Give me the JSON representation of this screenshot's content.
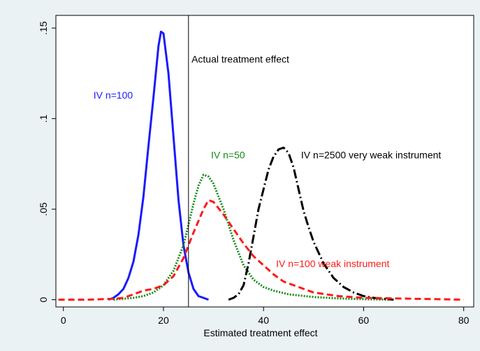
{
  "chart_data": {
    "type": "line",
    "title": "",
    "xlabel": "Estimated treatment effect",
    "ylabel": "",
    "xlim": [
      -1.5,
      82
    ],
    "ylim": [
      -0.004,
      0.157
    ],
    "xticks": [
      0,
      20,
      40,
      60,
      80
    ],
    "xtick_labels": [
      "0",
      "20",
      "40",
      "60",
      "80"
    ],
    "yticks": [
      0,
      0.05,
      0.1,
      0.15
    ],
    "ytick_labels": [
      "0",
      ".05",
      ".1",
      ".15"
    ],
    "grid": false,
    "legend": "none",
    "reference_line": {
      "x": 25,
      "label": "Actual treatment effect"
    },
    "series": [
      {
        "name": "IV n=100",
        "color": "#1a1aff",
        "style": "solid",
        "x": [
          9,
          10,
          11,
          12,
          13,
          14,
          15,
          16,
          17,
          18,
          19,
          19.5,
          20,
          21,
          22,
          23,
          24,
          25,
          26,
          27,
          28,
          29
        ],
        "y": [
          0.0,
          0.001,
          0.003,
          0.006,
          0.012,
          0.021,
          0.036,
          0.057,
          0.085,
          0.112,
          0.14,
          0.148,
          0.147,
          0.125,
          0.09,
          0.055,
          0.03,
          0.015,
          0.006,
          0.002,
          0.001,
          0.0
        ]
      },
      {
        "name": "IV n=50",
        "color": "#138a13",
        "style": "dotted",
        "x": [
          10,
          12,
          14,
          16,
          18,
          20,
          22,
          24,
          26,
          27,
          28,
          29,
          30,
          32,
          34,
          36,
          38,
          40,
          42,
          45,
          50,
          55,
          60,
          65
        ],
        "y": [
          0.0,
          0.0005,
          0.001,
          0.002,
          0.004,
          0.008,
          0.016,
          0.03,
          0.053,
          0.063,
          0.069,
          0.068,
          0.064,
          0.05,
          0.033,
          0.019,
          0.011,
          0.007,
          0.005,
          0.003,
          0.0015,
          0.0007,
          0.0003,
          0.0
        ]
      },
      {
        "name": "IV n=2500 very weak instrument",
        "color": "#000000",
        "style": "dash-dot",
        "x": [
          33,
          34,
          35,
          36,
          37,
          38,
          39,
          40,
          41,
          42,
          43,
          44,
          45,
          46,
          47,
          48,
          49,
          50,
          52,
          54,
          56,
          58,
          60,
          62,
          64,
          66
        ],
        "y": [
          0.0,
          0.001,
          0.003,
          0.008,
          0.02,
          0.035,
          0.05,
          0.061,
          0.072,
          0.079,
          0.083,
          0.084,
          0.081,
          0.073,
          0.061,
          0.049,
          0.04,
          0.032,
          0.02,
          0.012,
          0.007,
          0.004,
          0.002,
          0.001,
          0.0005,
          0.0
        ]
      },
      {
        "name": "IV n=100 weak instrument",
        "color": "#ff1a1a",
        "style": "dashed",
        "x": [
          -1,
          5,
          10,
          12,
          14,
          16,
          18,
          20,
          22,
          24,
          26,
          28,
          29,
          30,
          32,
          34,
          36,
          38,
          40,
          42,
          44,
          46,
          48,
          50,
          55,
          60,
          65,
          70,
          75,
          80
        ],
        "y": [
          0.0,
          0.0,
          0.0005,
          0.001,
          0.003,
          0.005,
          0.006,
          0.008,
          0.013,
          0.023,
          0.037,
          0.05,
          0.055,
          0.054,
          0.047,
          0.039,
          0.031,
          0.024,
          0.019,
          0.014,
          0.01,
          0.008,
          0.006,
          0.004,
          0.002,
          0.001,
          0.0008,
          0.0005,
          0.0003,
          0.0
        ]
      }
    ],
    "annotations": [
      {
        "text": "Actual treatment effect",
        "x": 25.6,
        "y": 0.131,
        "color": "#000000"
      },
      {
        "text": "IV n=100",
        "x": 6,
        "y": 0.111,
        "color": "#1a1aff"
      },
      {
        "text": "IV n=50",
        "x": 29.5,
        "y": 0.078,
        "color": "#138a13"
      },
      {
        "text": "IV n=2500 very weak instrument",
        "x": 47.5,
        "y": 0.078,
        "color": "#000000"
      },
      {
        "text": "IV n=100 weak instrument",
        "x": 42.5,
        "y": 0.018,
        "color": "#ff1a1a"
      }
    ]
  }
}
